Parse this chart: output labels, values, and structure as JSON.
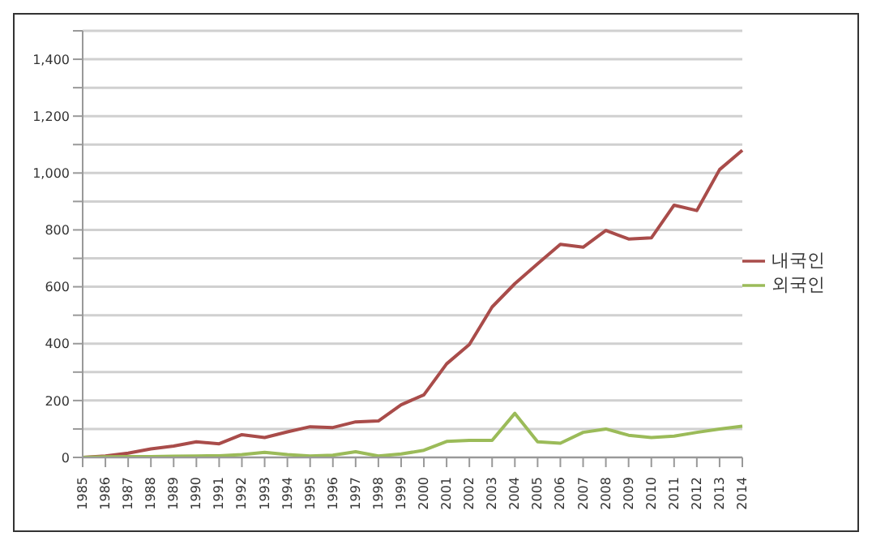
{
  "chart_data": {
    "type": "line",
    "categories": [
      "1985",
      "1986",
      "1987",
      "1988",
      "1989",
      "1990",
      "1991",
      "1992",
      "1993",
      "1994",
      "1995",
      "1996",
      "1997",
      "1998",
      "1999",
      "2000",
      "2001",
      "2002",
      "2003",
      "2004",
      "2005",
      "2006",
      "2007",
      "2008",
      "2009",
      "2010",
      "2011",
      "2012",
      "2013",
      "2014"
    ],
    "series": [
      {
        "name": "내국인",
        "color": "#a94c4a",
        "values": [
          0,
          5,
          15,
          30,
          40,
          55,
          48,
          80,
          70,
          90,
          108,
          105,
          125,
          128,
          185,
          220,
          329,
          397,
          529,
          611,
          681,
          749,
          739,
          798,
          768,
          772,
          887,
          868,
          1012,
          1080
        ]
      },
      {
        "name": "외국인",
        "color": "#9bbb59",
        "values": [
          0,
          2,
          3,
          3,
          4,
          5,
          6,
          10,
          18,
          10,
          5,
          8,
          20,
          5,
          12,
          25,
          56,
          60,
          60,
          155,
          55,
          50,
          88,
          100,
          78,
          70,
          75,
          88,
          100,
          110
        ]
      }
    ],
    "ylim": [
      0,
      1500
    ],
    "yticks": [
      0,
      {
        "value": 100,
        "label": null
      },
      200,
      {
        "value": 300,
        "label": null
      },
      400,
      {
        "value": 500,
        "label": null
      },
      600,
      {
        "value": 700,
        "label": null
      },
      800,
      {
        "value": 900,
        "label": null
      },
      {
        "value": 1000,
        "label": "1,000"
      },
      {
        "value": 1100,
        "label": null
      },
      {
        "value": 1200,
        "label": "1,200"
      },
      {
        "value": 1300,
        "label": null
      },
      {
        "value": 1400,
        "label": "1,400"
      },
      {
        "value": 1500,
        "label": null
      }
    ],
    "grid": "y",
    "legend": "right",
    "marker": "none",
    "line_style": "solid"
  }
}
